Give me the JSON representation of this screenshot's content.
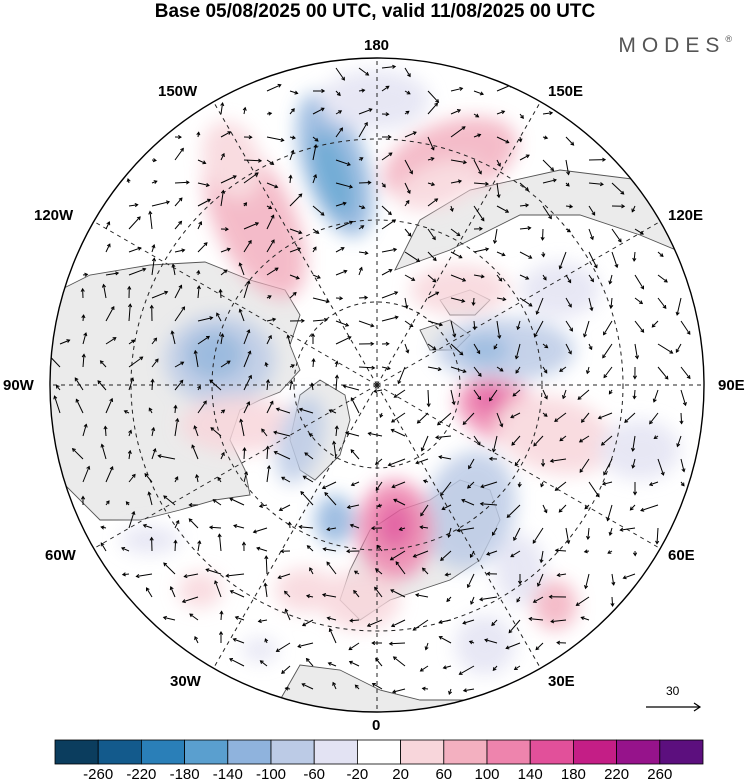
{
  "title": "Base 05/08/2025 00 UTC, valid 11/08/2025 00 UTC",
  "brand": "MODES",
  "brand_mark": "®",
  "longitude_labels": {
    "n180": "180",
    "e150": "150E",
    "e120": "120E",
    "e90": "90E",
    "e60": "60E",
    "e30": "30E",
    "z0": "0",
    "w30": "30W",
    "w60": "60W",
    "w90": "90W",
    "w120": "120W",
    "w150": "150W"
  },
  "vector_scale_label": "30",
  "colors": {
    "land": "#ebebeb",
    "coast": "#555555",
    "grid": "#222222"
  },
  "colorbar": {
    "bins": [
      {
        "color": "#0b3d5e"
      },
      {
        "color": "#135a8c"
      },
      {
        "color": "#2a7fb8"
      },
      {
        "color": "#5a9fcf"
      },
      {
        "color": "#8fb3dd"
      },
      {
        "color": "#bccbe6"
      },
      {
        "color": "#e3e3f3"
      },
      {
        "color": "#ffffff"
      },
      {
        "color": "#f8d6db"
      },
      {
        "color": "#f3b0c0"
      },
      {
        "color": "#ee84ad"
      },
      {
        "color": "#e2509a"
      },
      {
        "color": "#c41e86"
      },
      {
        "color": "#96138b"
      },
      {
        "color": "#5c0f7e"
      }
    ],
    "ticks": [
      "-260",
      "-220",
      "-180",
      "-140",
      "-100",
      "-60",
      "-20",
      "20",
      "60",
      "100",
      "140",
      "180",
      "220",
      "260"
    ]
  }
}
